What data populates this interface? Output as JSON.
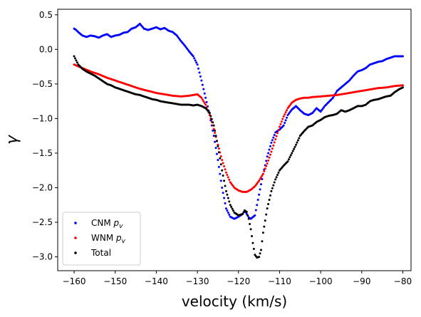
{
  "chart_data": {
    "type": "scatter",
    "xlabel": "velocity (km/s)",
    "ylabel": "γ",
    "xlim": [
      -164,
      -78
    ],
    "ylim": [
      -3.2,
      0.58
    ],
    "x_ticks": [
      -160,
      -150,
      -140,
      -130,
      -120,
      -110,
      -100,
      -90,
      -80
    ],
    "y_ticks": [
      0.5,
      0.0,
      -0.5,
      -1.0,
      -1.5,
      -2.0,
      -2.5,
      -3.0
    ],
    "x_tick_labels": [
      "−160",
      "−150",
      "−140",
      "−130",
      "−120",
      "−110",
      "−100",
      "−90",
      "−80"
    ],
    "y_tick_labels": [
      "0.5",
      "0.0",
      "−0.5",
      "−1.0",
      "−1.5",
      "−2.0",
      "−2.5",
      "−3.0"
    ],
    "grid": false,
    "legend_position": "lower-left",
    "series": [
      {
        "name": "CNM",
        "name_subscript": "p",
        "name_subscript_sub": "v",
        "color": "#0000ff",
        "x": [
          -160,
          -159.5,
          -159,
          -158,
          -157,
          -156,
          -155,
          -154,
          -153,
          -152,
          -151,
          -150,
          -149,
          -148,
          -147,
          -146,
          -145,
          -144,
          -143,
          -142,
          -141,
          -140,
          -139,
          -138,
          -137,
          -136,
          -135,
          -134,
          -133,
          -132,
          -131,
          -130,
          -129,
          -128,
          -127,
          -126,
          -125,
          -124,
          -123,
          -122,
          -121,
          -120,
          -119,
          -118.5,
          -118,
          -117.5,
          -117,
          -116,
          -115,
          -114,
          -113,
          -112,
          -111,
          -110,
          -109,
          -108,
          -107,
          -106,
          -105,
          -104,
          -103,
          -102,
          -101,
          -100,
          -99,
          -98,
          -97,
          -96,
          -95,
          -94,
          -93,
          -92,
          -91,
          -90,
          -89,
          -88,
          -87,
          -86,
          -85,
          -84,
          -83,
          -82,
          -81,
          -80
        ],
        "y": [
          0.3,
          0.28,
          0.25,
          0.2,
          0.18,
          0.2,
          0.19,
          0.17,
          0.2,
          0.22,
          0.18,
          0.2,
          0.21,
          0.24,
          0.25,
          0.3,
          0.32,
          0.37,
          0.3,
          0.28,
          0.3,
          0.32,
          0.29,
          0.31,
          0.27,
          0.25,
          0.2,
          0.12,
          0.05,
          -0.03,
          -0.1,
          -0.22,
          -0.45,
          -0.7,
          -0.95,
          -1.25,
          -1.6,
          -2.0,
          -2.3,
          -2.42,
          -2.45,
          -2.42,
          -2.38,
          -2.33,
          -2.38,
          -2.43,
          -2.45,
          -2.4,
          -2.1,
          -1.8,
          -1.55,
          -1.35,
          -1.2,
          -1.16,
          -1.1,
          -0.95,
          -0.87,
          -0.82,
          -0.88,
          -0.93,
          -0.95,
          -0.92,
          -0.85,
          -0.9,
          -0.82,
          -0.76,
          -0.7,
          -0.6,
          -0.55,
          -0.5,
          -0.45,
          -0.38,
          -0.32,
          -0.3,
          -0.27,
          -0.22,
          -0.2,
          -0.18,
          -0.17,
          -0.14,
          -0.12,
          -0.1,
          -0.1,
          -0.1
        ]
      },
      {
        "name": "WNM",
        "name_subscript": "p",
        "name_subscript_sub": "v",
        "color": "#ff0000",
        "x": [
          -160,
          -158,
          -156,
          -154,
          -152,
          -150,
          -148,
          -146,
          -144,
          -142,
          -140,
          -138,
          -136,
          -134,
          -132,
          -131,
          -130,
          -129,
          -128,
          -127,
          -126,
          -125,
          -124,
          -123,
          -122,
          -121,
          -120,
          -119,
          -118,
          -117,
          -116,
          -115,
          -114,
          -113,
          -112,
          -111,
          -110,
          -109,
          -108,
          -107,
          -106,
          -105,
          -104,
          -103,
          -102,
          -100,
          -98,
          -96,
          -94,
          -92,
          -90,
          -88,
          -86,
          -84,
          -82,
          -80
        ],
        "y": [
          -0.22,
          -0.27,
          -0.32,
          -0.36,
          -0.41,
          -0.45,
          -0.49,
          -0.53,
          -0.57,
          -0.6,
          -0.63,
          -0.65,
          -0.67,
          -0.68,
          -0.67,
          -0.66,
          -0.65,
          -0.7,
          -0.8,
          -0.95,
          -1.15,
          -1.38,
          -1.6,
          -1.78,
          -1.92,
          -2.0,
          -2.04,
          -2.06,
          -2.06,
          -2.03,
          -1.98,
          -1.9,
          -1.8,
          -1.65,
          -1.48,
          -1.3,
          -1.12,
          -0.97,
          -0.85,
          -0.77,
          -0.73,
          -0.71,
          -0.7,
          -0.7,
          -0.69,
          -0.68,
          -0.67,
          -0.66,
          -0.64,
          -0.62,
          -0.6,
          -0.58,
          -0.56,
          -0.55,
          -0.53,
          -0.52
        ]
      },
      {
        "name": "Total",
        "color": "#000000",
        "x": [
          -160,
          -159,
          -158,
          -157,
          -156,
          -155,
          -154,
          -153,
          -152,
          -151,
          -150,
          -149,
          -148,
          -147,
          -146,
          -145,
          -144,
          -143,
          -142,
          -141,
          -140,
          -139,
          -138,
          -137,
          -136,
          -135,
          -134,
          -133,
          -132,
          -131,
          -130,
          -129,
          -128,
          -127,
          -126,
          -125,
          -124,
          -123,
          -122,
          -121,
          -120,
          -119,
          -118.5,
          -118,
          -117.5,
          -117,
          -116.5,
          -116,
          -115.5,
          -115,
          -114.5,
          -114,
          -113,
          -112,
          -111,
          -110,
          -109,
          -108,
          -107,
          -106,
          -105,
          -104,
          -103,
          -102,
          -101,
          -100,
          -99,
          -98,
          -97,
          -96,
          -95,
          -94,
          -93,
          -92,
          -91,
          -90,
          -89,
          -88,
          -87,
          -86,
          -85,
          -84,
          -83,
          -82,
          -81,
          -80
        ],
        "y": [
          -0.1,
          -0.22,
          -0.28,
          -0.32,
          -0.35,
          -0.38,
          -0.42,
          -0.46,
          -0.5,
          -0.52,
          -0.55,
          -0.57,
          -0.59,
          -0.61,
          -0.63,
          -0.65,
          -0.66,
          -0.68,
          -0.7,
          -0.72,
          -0.73,
          -0.75,
          -0.76,
          -0.77,
          -0.78,
          -0.79,
          -0.8,
          -0.8,
          -0.8,
          -0.81,
          -0.8,
          -0.82,
          -0.85,
          -0.92,
          -1.1,
          -1.4,
          -1.75,
          -2.05,
          -2.25,
          -2.36,
          -2.4,
          -2.38,
          -2.33,
          -2.35,
          -2.45,
          -2.6,
          -2.8,
          -2.97,
          -3.01,
          -3.0,
          -2.9,
          -2.65,
          -2.3,
          -2.05,
          -1.88,
          -1.75,
          -1.68,
          -1.62,
          -1.5,
          -1.38,
          -1.25,
          -1.18,
          -1.12,
          -1.1,
          -1.05,
          -1.02,
          -0.98,
          -0.96,
          -0.95,
          -0.93,
          -0.88,
          -0.9,
          -0.88,
          -0.85,
          -0.82,
          -0.82,
          -0.8,
          -0.75,
          -0.73,
          -0.72,
          -0.7,
          -0.68,
          -0.67,
          -0.62,
          -0.58,
          -0.55
        ]
      }
    ]
  }
}
